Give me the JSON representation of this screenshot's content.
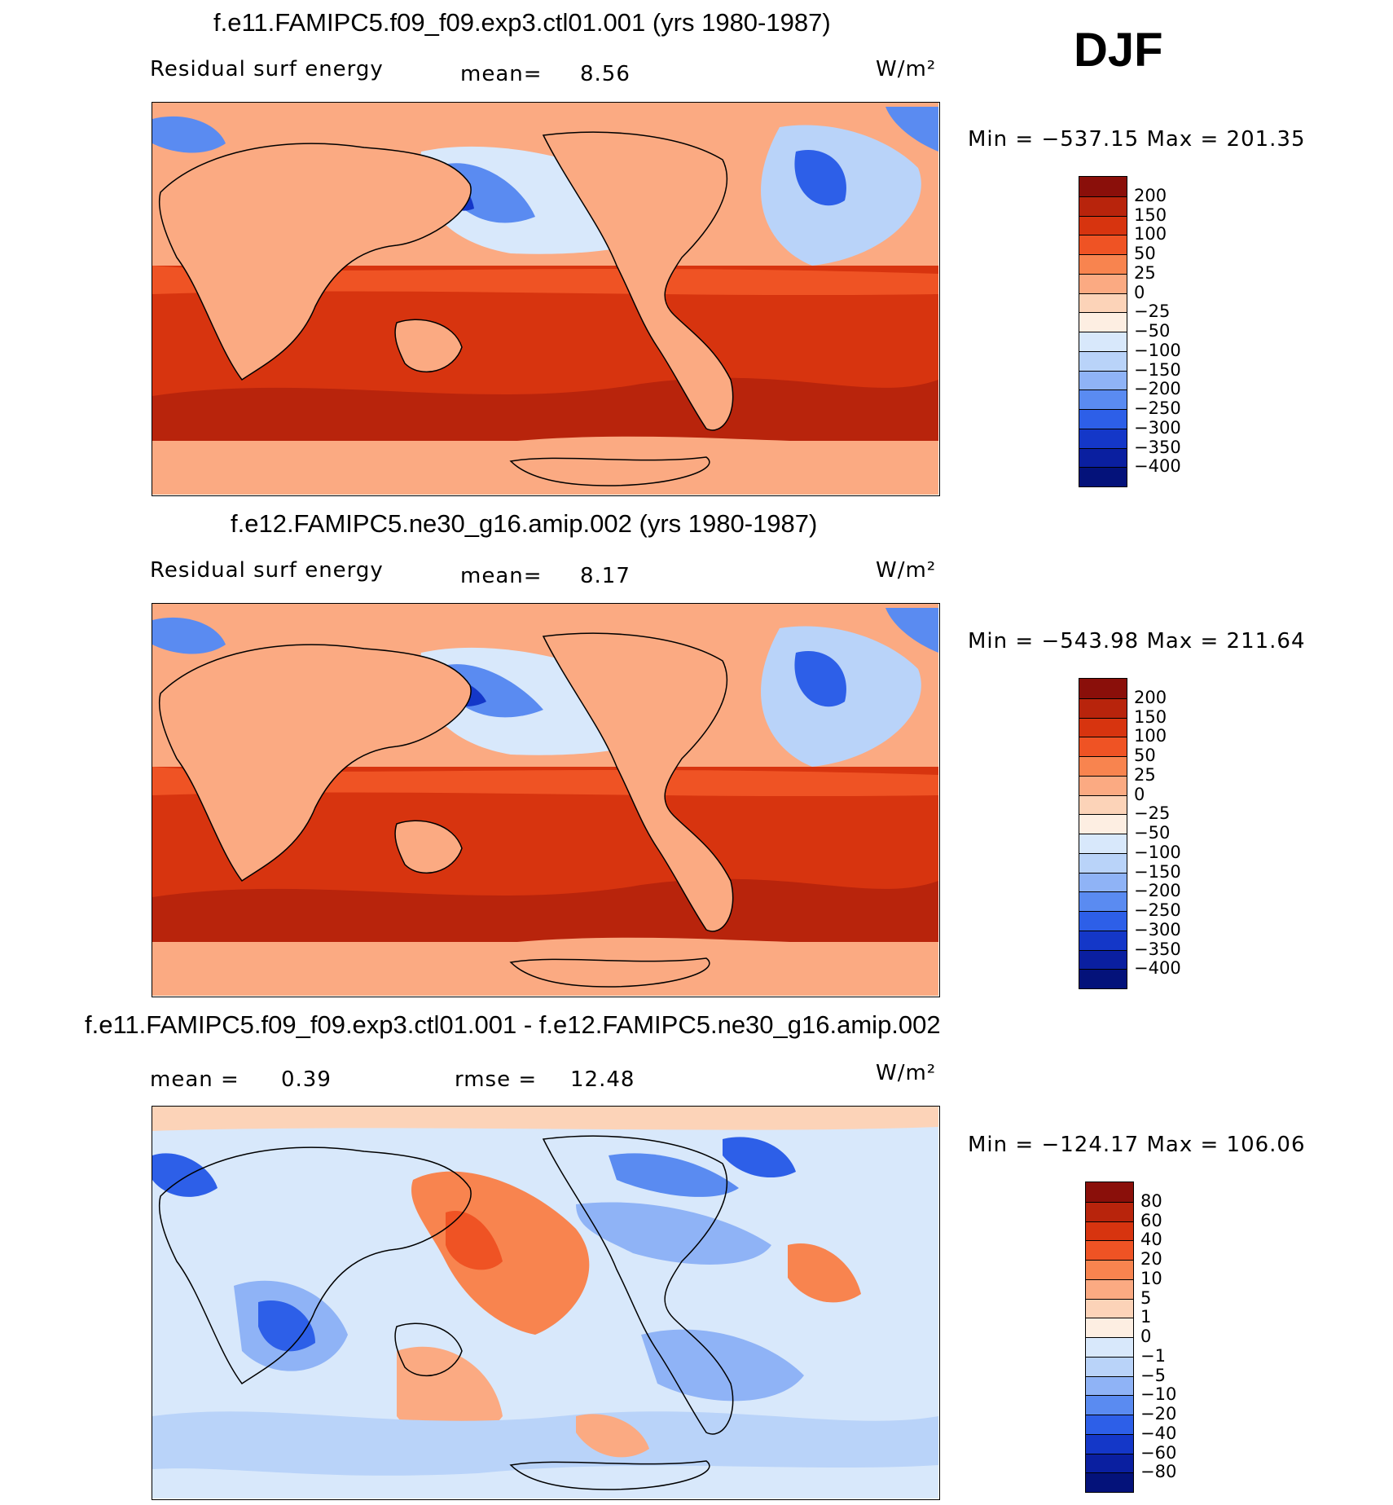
{
  "season": "DJF",
  "panels": [
    {
      "title": "f.e11.FAMIPC5.f09_f09.exp3.ctl01.001 (yrs 1980-1987)",
      "left_text": "Residual surf energy",
      "mid_label": "mean=",
      "mid_value": "8.56",
      "right_label": "",
      "right_value": "",
      "units": "W/m²",
      "minmax": "Min = −537.15 Max = 201.35",
      "colorbar": {
        "labels": [
          "200",
          "150",
          "100",
          "50",
          "25",
          "0",
          "−25",
          "−50",
          "−100",
          "−150",
          "−200",
          "−250",
          "−300",
          "−350",
          "−400"
        ],
        "colors": [
          "#8a0f0a",
          "#b8240c",
          "#d7340f",
          "#ef5324",
          "#f8844f",
          "#fbaa82",
          "#fcd3b8",
          "#fdeee2",
          "#d8e8fb",
          "#b9d3f9",
          "#8fb3f6",
          "#5a8bf1",
          "#2d5fe8",
          "#1437c8",
          "#0a1fa0",
          "#04127a"
        ],
        "min": -537.15,
        "max": 201.35
      }
    },
    {
      "title": "f.e12.FAMIPC5.ne30_g16.amip.002 (yrs 1980-1987)",
      "left_text": "Residual surf energy",
      "mid_label": "mean=",
      "mid_value": "8.17",
      "right_label": "",
      "right_value": "",
      "units": "W/m²",
      "minmax": "Min = −543.98 Max = 211.64",
      "colorbar": {
        "labels": [
          "200",
          "150",
          "100",
          "50",
          "25",
          "0",
          "−25",
          "−50",
          "−100",
          "−150",
          "−200",
          "−250",
          "−300",
          "−350",
          "−400"
        ],
        "colors": [
          "#8a0f0a",
          "#b8240c",
          "#d7340f",
          "#ef5324",
          "#f8844f",
          "#fbaa82",
          "#fcd3b8",
          "#fdeee2",
          "#d8e8fb",
          "#b9d3f9",
          "#8fb3f6",
          "#5a8bf1",
          "#2d5fe8",
          "#1437c8",
          "#0a1fa0",
          "#04127a"
        ],
        "min": -543.98,
        "max": 211.64
      }
    },
    {
      "title": "f.e11.FAMIPC5.f09_f09.exp3.ctl01.001 - f.e12.FAMIPC5.ne30_g16.amip.002",
      "left_text": "mean =",
      "mid_label": "0.39",
      "mid_value": "",
      "right_label": "rmse =",
      "right_value": "12.48",
      "units": "W/m²",
      "minmax": "Min = −124.17 Max = 106.06",
      "colorbar": {
        "labels": [
          "80",
          "60",
          "40",
          "20",
          "10",
          "5",
          "1",
          "0",
          "−1",
          "−5",
          "−10",
          "−20",
          "−40",
          "−60",
          "−80"
        ],
        "colors": [
          "#8a0f0a",
          "#b8240c",
          "#d7340f",
          "#ef5324",
          "#f8844f",
          "#fbaa82",
          "#fcd3b8",
          "#fdeee2",
          "#d8e8fb",
          "#b9d3f9",
          "#8fb3f6",
          "#5a8bf1",
          "#2d5fe8",
          "#1437c8",
          "#0a1fa0",
          "#04127a"
        ],
        "min": -124.17,
        "max": 106.06
      }
    }
  ],
  "chart_data": [
    {
      "type": "heatmap",
      "title": "f.e11.FAMIPC5.f09_f09.exp3.ctl01.001 (yrs 1980-1987)",
      "subtitle": "Residual surf energy",
      "mean": 8.56,
      "units": "W/m²",
      "min": -537.15,
      "max": 201.35,
      "contour_levels": [
        -400,
        -350,
        -300,
        -250,
        -200,
        -150,
        -100,
        -50,
        -25,
        0,
        25,
        50,
        100,
        150,
        200
      ],
      "colors": [
        "#04127a",
        "#0a1fa0",
        "#1437c8",
        "#2d5fe8",
        "#5a8bf1",
        "#8fb3f6",
        "#b9d3f9",
        "#d8e8fb",
        "#fdeee2",
        "#fcd3b8",
        "#fbaa82",
        "#f8844f",
        "#ef5324",
        "#d7340f",
        "#b8240c",
        "#8a0f0a"
      ],
      "legend": "right"
    },
    {
      "type": "heatmap",
      "title": "f.e12.FAMIPC5.ne30_g16.amip.002 (yrs 1980-1987)",
      "subtitle": "Residual surf energy",
      "mean": 8.17,
      "units": "W/m²",
      "min": -543.98,
      "max": 211.64,
      "contour_levels": [
        -400,
        -350,
        -300,
        -250,
        -200,
        -150,
        -100,
        -50,
        -25,
        0,
        25,
        50,
        100,
        150,
        200
      ],
      "colors": [
        "#04127a",
        "#0a1fa0",
        "#1437c8",
        "#2d5fe8",
        "#5a8bf1",
        "#8fb3f6",
        "#b9d3f9",
        "#d8e8fb",
        "#fdeee2",
        "#fcd3b8",
        "#fbaa82",
        "#f8844f",
        "#ef5324",
        "#d7340f",
        "#b8240c",
        "#8a0f0a"
      ],
      "legend": "right"
    },
    {
      "type": "heatmap",
      "title": "f.e11.FAMIPC5.f09_f09.exp3.ctl01.001 - f.e12.FAMIPC5.ne30_g16.amip.002",
      "mean": 0.39,
      "rmse": 12.48,
      "units": "W/m²",
      "min": -124.17,
      "max": 106.06,
      "contour_levels": [
        -80,
        -60,
        -40,
        -20,
        -10,
        -5,
        -1,
        0,
        1,
        5,
        10,
        20,
        40,
        60,
        80
      ],
      "colors": [
        "#04127a",
        "#0a1fa0",
        "#1437c8",
        "#2d5fe8",
        "#5a8bf1",
        "#8fb3f6",
        "#b9d3f9",
        "#d8e8fb",
        "#fdeee2",
        "#fcd3b8",
        "#fbaa82",
        "#f8844f",
        "#ef5324",
        "#d7340f",
        "#b8240c",
        "#8a0f0a"
      ],
      "legend": "right"
    }
  ]
}
